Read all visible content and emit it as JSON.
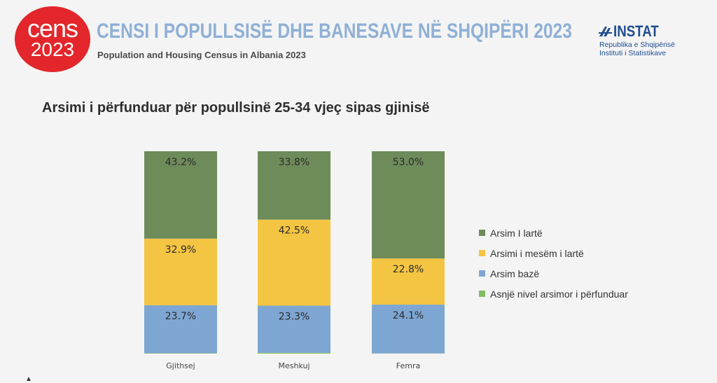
{
  "header": {
    "logo_word": "cens",
    "logo_year": "2023",
    "title": "CENSI I POPULLSISË DHE BANESAVE NË SHQIPËRI 2023",
    "subtitle": "Population and Housing Census in Albania 2023",
    "institute_name": "INSTAT",
    "institute_line1": "Republika e Shqipërisë",
    "institute_line2": "Instituti i Statistikave"
  },
  "colors": {
    "brand_red": "#e3262b",
    "title_blue": "#8fb0d6",
    "instat_blue": "#1f4d8f"
  },
  "chart_data": {
    "type": "bar",
    "stacked": true,
    "percent_stacked": true,
    "title": "Arsimi i përfunduar për popullsinë 25-34 vjeç sipas gjinisë",
    "categories": [
      "Gjithsej",
      "Meshkuj",
      "Femra"
    ],
    "ylim": [
      0,
      100
    ],
    "grid": false,
    "legend_position": "right",
    "series": [
      {
        "name": "Asnjë nivel arsimor i përfunduar",
        "color": "#7fbf63",
        "values": [
          0.2,
          0.4,
          0.1
        ],
        "labels": [
          "",
          "",
          ""
        ]
      },
      {
        "name": "Arsim bazë",
        "color": "#7ea6d3",
        "values": [
          23.7,
          23.3,
          24.1
        ],
        "labels": [
          "23.7%",
          "23.3%",
          "24.1%"
        ]
      },
      {
        "name": "Arsimi i mesëm i lartë",
        "color": "#f4c542",
        "values": [
          32.9,
          42.5,
          22.8
        ],
        "labels": [
          "32.9%",
          "42.5%",
          "22.8%"
        ]
      },
      {
        "name": "Arsim I lartë",
        "color": "#6e8b5a",
        "values": [
          43.2,
          33.8,
          53.0
        ],
        "labels": [
          "43.2%",
          "33.8%",
          "53.0%"
        ]
      }
    ],
    "legend_order": [
      3,
      2,
      1,
      0
    ]
  }
}
